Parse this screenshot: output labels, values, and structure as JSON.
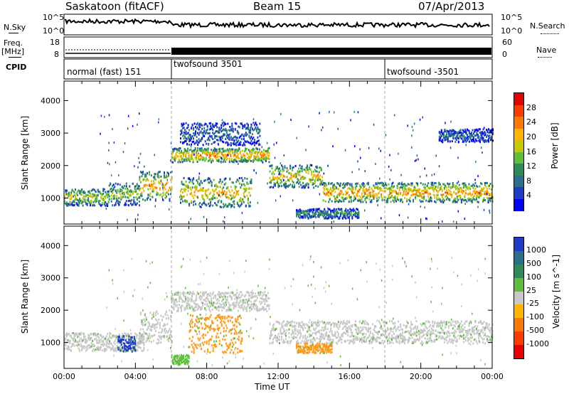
{
  "header": {
    "title": "Saskatoon (fitACF)",
    "beam": "Beam 15",
    "date": "07/Apr/2013"
  },
  "panels": {
    "nsky_label": "N.Sky",
    "nsearch_label": "N.Search",
    "nsky_ticks": [
      "10^5",
      "10^0"
    ],
    "freq_label": "Freq.",
    "freq_unit": "[MHz]",
    "freq_ticks": [
      "18",
      "8"
    ],
    "nave_label": "Nave",
    "nave_ticks": [
      "60",
      "0"
    ],
    "cpid_label": "CPID",
    "cpid_modes": [
      "normal (fast) 151",
      "twofsound 3501",
      "twofsound -3501"
    ]
  },
  "chart_data": [
    {
      "type": "heatmap",
      "title": "",
      "quantity": "Power",
      "xlabel": "Time UT",
      "ylabel": "Slant Range [km]",
      "x_ticks": [
        "00:00",
        "04:00",
        "08:00",
        "12:00",
        "16:00",
        "20:00",
        "00:00"
      ],
      "x_range_hours": [
        0,
        24
      ],
      "y_ticks": [
        1000,
        2000,
        3000,
        4000
      ],
      "y_range_km": [
        200,
        4600
      ],
      "colorbar": {
        "label": "Power [dB]",
        "ticks": [
          4,
          8,
          12,
          16,
          20,
          24,
          28
        ],
        "colors": [
          "#0000ff",
          "#1e3cc8",
          "#2a6f8c",
          "#2e8b57",
          "#5fbf3c",
          "#c8c800",
          "#ffb400",
          "#ff7800",
          "#ff3c00",
          "#e60000"
        ]
      },
      "bands": [
        {
          "start_h": 0.0,
          "end_h": 2.5,
          "center_km": 1050,
          "width_km": 260,
          "level": 0.55
        },
        {
          "start_h": 2.5,
          "end_h": 4.2,
          "center_km": 1150,
          "width_km": 350,
          "level": 0.5
        },
        {
          "start_h": 4.2,
          "end_h": 6.0,
          "center_km": 1400,
          "width_km": 450,
          "level": 0.7
        },
        {
          "start_h": 6.0,
          "end_h": 11.5,
          "center_km": 2350,
          "width_km": 220,
          "level": 0.75
        },
        {
          "start_h": 6.5,
          "end_h": 10.5,
          "center_km": 1200,
          "width_km": 450,
          "level": 0.65
        },
        {
          "start_h": 11.5,
          "end_h": 14.5,
          "center_km": 1700,
          "width_km": 350,
          "level": 0.65
        },
        {
          "start_h": 14.5,
          "end_h": 24.0,
          "center_km": 1200,
          "width_km": 300,
          "level": 0.75
        },
        {
          "start_h": 6.5,
          "end_h": 11.0,
          "center_km": 3000,
          "width_km": 350,
          "level": 0.25
        },
        {
          "start_h": 13.0,
          "end_h": 16.5,
          "center_km": 550,
          "width_km": 150,
          "level": 0.35
        },
        {
          "start_h": 21.0,
          "end_h": 24.0,
          "center_km": 2950,
          "width_km": 200,
          "level": 0.25
        }
      ]
    },
    {
      "type": "heatmap",
      "title": "",
      "quantity": "Velocity",
      "xlabel": "Time UT",
      "ylabel": "Slant Range [km]",
      "x_ticks": [
        "00:00",
        "04:00",
        "08:00",
        "12:00",
        "16:00",
        "20:00",
        "00:00"
      ],
      "x_range_hours": [
        0,
        24
      ],
      "y_ticks": [
        1000,
        2000,
        3000,
        4000
      ],
      "y_range_km": [
        200,
        4600
      ],
      "colorbar": {
        "label": "Velocity [m s^-1]",
        "ticks": [
          "1000",
          "500",
          "100",
          "25",
          "-25",
          "-100",
          "-500",
          "-1000"
        ],
        "colors": [
          "#1e3cc8",
          "#2a6f8c",
          "#2e8b57",
          "#5fbf3c",
          "#c8c8c8",
          "#ffb400",
          "#ff7800",
          "#ff3c00",
          "#e60000"
        ]
      },
      "bands": [
        {
          "start_h": 0.0,
          "end_h": 4.5,
          "center_km": 1050,
          "width_km": 280,
          "vel": "gray"
        },
        {
          "start_h": 4.2,
          "end_h": 6.0,
          "center_km": 1500,
          "width_km": 500,
          "vel": "gray"
        },
        {
          "start_h": 6.0,
          "end_h": 11.5,
          "center_km": 2300,
          "width_km": 300,
          "vel": "gray"
        },
        {
          "start_h": 7.0,
          "end_h": 10.0,
          "center_km": 1300,
          "width_km": 600,
          "vel": "orange"
        },
        {
          "start_h": 11.5,
          "end_h": 24.0,
          "center_km": 1350,
          "width_km": 350,
          "vel": "gray"
        },
        {
          "start_h": 3.0,
          "end_h": 4.0,
          "center_km": 1000,
          "width_km": 250,
          "vel": "blue"
        },
        {
          "start_h": 6.0,
          "end_h": 7.0,
          "center_km": 500,
          "width_km": 150,
          "vel": "green"
        },
        {
          "start_h": 13.0,
          "end_h": 15.0,
          "center_km": 850,
          "width_km": 150,
          "vel": "orange"
        }
      ]
    }
  ]
}
